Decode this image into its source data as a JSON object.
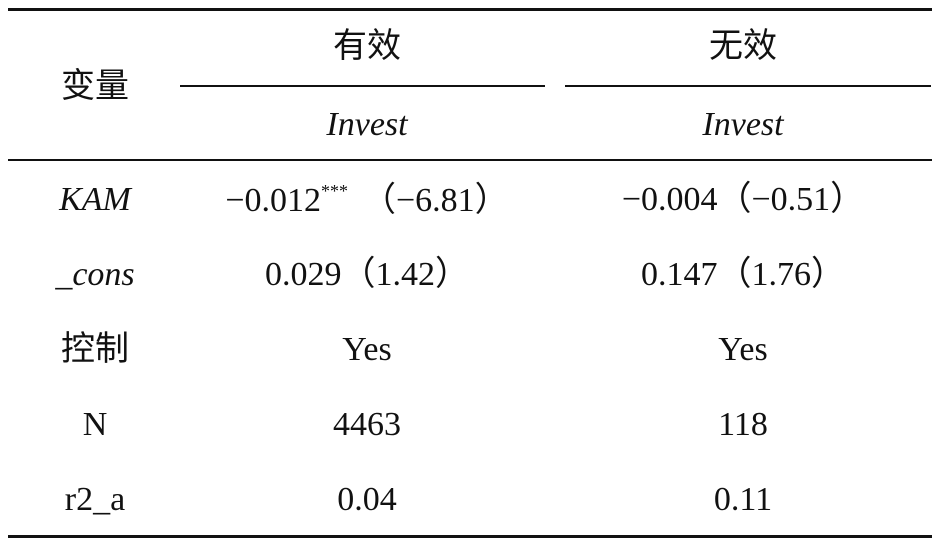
{
  "table": {
    "header": {
      "variable": "变量",
      "groups": [
        "有效",
        "无效"
      ],
      "subheaders": [
        "Invest",
        "Invest"
      ]
    },
    "rows": [
      {
        "label": "KAM",
        "cells": [
          {
            "coef": "−0.012",
            "stars": "***",
            "t": "（−6.81）"
          },
          {
            "coef": "−0.004",
            "t": "（−0.51）"
          }
        ]
      },
      {
        "label": "_cons",
        "cells": [
          {
            "coef": "0.029",
            "t": "（1.42）"
          },
          {
            "coef": "0.147",
            "t": "（1.76）"
          }
        ]
      },
      {
        "label": "控制",
        "cells": [
          {
            "coef": "Yes"
          },
          {
            "coef": "Yes"
          }
        ]
      },
      {
        "label": "N",
        "cells": [
          {
            "coef": "4463"
          },
          {
            "coef": "118"
          }
        ]
      },
      {
        "label": "r2_a",
        "cells": [
          {
            "coef": "0.04"
          },
          {
            "coef": "0.11"
          }
        ]
      }
    ]
  }
}
